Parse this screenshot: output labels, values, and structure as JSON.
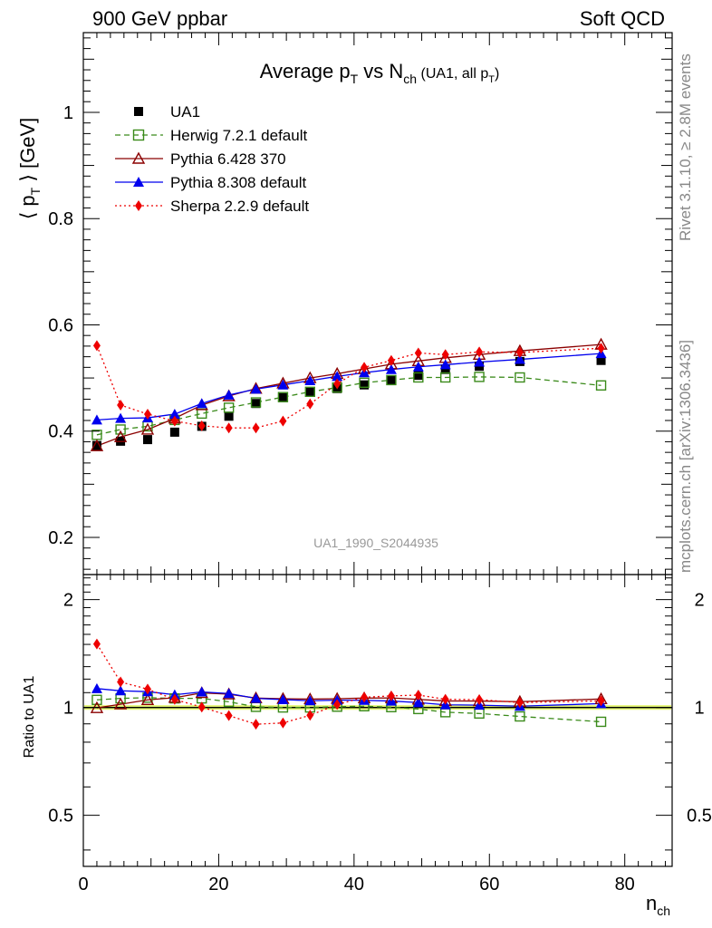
{
  "header": {
    "left": "900 GeV ppbar",
    "right": "Soft QCD"
  },
  "plot": {
    "title_main": "Average p",
    "title_sub1": "T",
    "title_vs": " vs N",
    "title_sub2": "ch",
    "title_note": " (UA1, all p",
    "title_note_sub": "T",
    "title_note_end": ")",
    "analysis_id": "UA1_1990_S2044935",
    "ylabel_main": "⟨ p",
    "ylabel_sub": "T",
    "ylabel_end": " ⟩ [GeV]",
    "xlabel_main": "n",
    "xlabel_sub": "ch",
    "ratio_ylabel": "Ratio to UA1"
  },
  "side_labels": {
    "rivet": "Rivet 3.1.10, ≥ 2.8M events",
    "mcplots": "mcplots.cern.ch [arXiv:1306.3436]"
  },
  "colors": {
    "data": "#000000",
    "herwig": "#3a8a1a",
    "pythia6": "#8b0000",
    "pythia8": "#0000ee",
    "sherpa": "#ee0000",
    "band": "#e6f57a"
  },
  "chart_data": [
    {
      "type": "scatter",
      "panel": "main",
      "xlim": [
        0,
        87
      ],
      "ylim": [
        0.13,
        1.15
      ],
      "yticks": [
        0.2,
        0.4,
        0.6,
        0.8,
        1
      ],
      "ytick_labels": [
        "0.2",
        "0.4",
        "0.6",
        "0.8",
        "1"
      ],
      "legend_position": "top-left",
      "series": [
        {
          "name": "UA1",
          "key": "data",
          "marker": "square-filled",
          "line": "none",
          "x": [
            2,
            5.5,
            9.5,
            13.5,
            17.5,
            21.5,
            25.5,
            29.5,
            33.5,
            37.5,
            41.5,
            45.5,
            49.5,
            53.5,
            58.5,
            64.5,
            76.5
          ],
          "y": [
            0.373,
            0.381,
            0.384,
            0.398,
            0.409,
            0.428,
            0.452,
            0.463,
            0.474,
            0.48,
            0.487,
            0.495,
            0.505,
            0.516,
            0.522,
            0.531,
            0.533
          ]
        },
        {
          "name": "Herwig 7.2.1 default",
          "key": "herwig",
          "marker": "square-open",
          "line": "dashed",
          "x": [
            2,
            5.5,
            9.5,
            13.5,
            17.5,
            21.5,
            25.5,
            29.5,
            33.5,
            37.5,
            41.5,
            45.5,
            49.5,
            53.5,
            58.5,
            64.5,
            76.5
          ],
          "y": [
            0.393,
            0.403,
            0.409,
            0.421,
            0.433,
            0.444,
            0.454,
            0.464,
            0.474,
            0.482,
            0.491,
            0.496,
            0.501,
            0.501,
            0.502,
            0.501,
            0.486
          ]
        },
        {
          "name": "Pythia 6.428 370",
          "key": "pythia6",
          "marker": "triangle-open",
          "line": "solid",
          "x": [
            2,
            5.5,
            9.5,
            13.5,
            17.5,
            21.5,
            25.5,
            29.5,
            33.5,
            37.5,
            41.5,
            45.5,
            49.5,
            53.5,
            58.5,
            64.5,
            76.5
          ],
          "y": [
            0.372,
            0.389,
            0.403,
            0.424,
            0.449,
            0.466,
            0.48,
            0.49,
            0.5,
            0.508,
            0.517,
            0.526,
            0.532,
            0.538,
            0.544,
            0.551,
            0.563
          ]
        },
        {
          "name": "Pythia 8.308 default",
          "key": "pythia8",
          "marker": "triangle-filled",
          "line": "solid",
          "x": [
            2,
            5.5,
            9.5,
            13.5,
            17.5,
            21.5,
            25.5,
            29.5,
            33.5,
            37.5,
            41.5,
            45.5,
            49.5,
            53.5,
            58.5,
            64.5,
            76.5
          ],
          "y": [
            0.421,
            0.424,
            0.425,
            0.432,
            0.452,
            0.468,
            0.479,
            0.487,
            0.495,
            0.503,
            0.51,
            0.516,
            0.521,
            0.525,
            0.53,
            0.535,
            0.546
          ]
        },
        {
          "name": "Sherpa 2.2.9 default",
          "key": "sherpa",
          "marker": "diamond-filled",
          "line": "dotted",
          "x": [
            2,
            5.5,
            9.5,
            13.5,
            17.5,
            21.5,
            25.5,
            29.5,
            33.5,
            37.5,
            41.5,
            45.5,
            49.5,
            53.5,
            58.5,
            64.5,
            76.5
          ],
          "y": [
            0.561,
            0.449,
            0.432,
            0.419,
            0.41,
            0.406,
            0.406,
            0.419,
            0.451,
            0.489,
            0.52,
            0.533,
            0.547,
            0.544,
            0.549,
            0.548,
            0.556
          ]
        }
      ]
    },
    {
      "type": "scatter",
      "panel": "ratio",
      "ylabel": "Ratio to UA1",
      "xlim": [
        0,
        87
      ],
      "ylim": [
        0.36,
        2.35
      ],
      "yticks": [
        0.5,
        1,
        2
      ],
      "ytick_labels": [
        "0.5",
        "1",
        "2"
      ],
      "xticks": [
        0,
        20,
        40,
        60,
        80
      ],
      "xtick_labels": [
        "0",
        "20",
        "40",
        "60",
        "80"
      ],
      "series": [
        {
          "name": "Herwig 7.2.1 default",
          "key": "herwig",
          "x": [
            2,
            5.5,
            9.5,
            13.5,
            17.5,
            21.5,
            25.5,
            29.5,
            33.5,
            37.5,
            41.5,
            45.5,
            49.5,
            53.5,
            58.5,
            64.5,
            76.5
          ],
          "y": [
            1.05,
            1.06,
            1.065,
            1.06,
            1.06,
            1.037,
            1.004,
            1.0,
            1.0,
            1.005,
            1.008,
            1.002,
            0.99,
            0.97,
            0.962,
            0.944,
            0.912
          ]
        },
        {
          "name": "Pythia 6.428 370",
          "key": "pythia6",
          "x": [
            2,
            5.5,
            9.5,
            13.5,
            17.5,
            21.5,
            25.5,
            29.5,
            33.5,
            37.5,
            41.5,
            45.5,
            49.5,
            53.5,
            58.5,
            64.5,
            76.5
          ],
          "y": [
            0.997,
            1.021,
            1.05,
            1.065,
            1.098,
            1.089,
            1.062,
            1.058,
            1.055,
            1.058,
            1.062,
            1.063,
            1.053,
            1.043,
            1.042,
            1.038,
            1.056
          ]
        },
        {
          "name": "Pythia 8.308 default",
          "key": "pythia8",
          "x": [
            2,
            5.5,
            9.5,
            13.5,
            17.5,
            21.5,
            25.5,
            29.5,
            33.5,
            37.5,
            41.5,
            45.5,
            49.5,
            53.5,
            58.5,
            64.5,
            76.5
          ],
          "y": [
            1.129,
            1.113,
            1.107,
            1.085,
            1.105,
            1.094,
            1.06,
            1.052,
            1.044,
            1.048,
            1.047,
            1.042,
            1.032,
            1.017,
            1.015,
            1.008,
            1.025
          ]
        },
        {
          "name": "Sherpa 2.2.9 default",
          "key": "sherpa",
          "x": [
            2,
            5.5,
            9.5,
            13.5,
            17.5,
            21.5,
            25.5,
            29.5,
            33.5,
            37.5,
            41.5,
            45.5,
            49.5,
            53.5,
            58.5,
            64.5,
            76.5
          ],
          "y": [
            1.504,
            1.178,
            1.125,
            1.053,
            1.002,
            0.949,
            0.898,
            0.905,
            0.951,
            1.019,
            1.068,
            1.077,
            1.083,
            1.054,
            1.052,
            1.032,
            1.043
          ]
        }
      ]
    }
  ]
}
